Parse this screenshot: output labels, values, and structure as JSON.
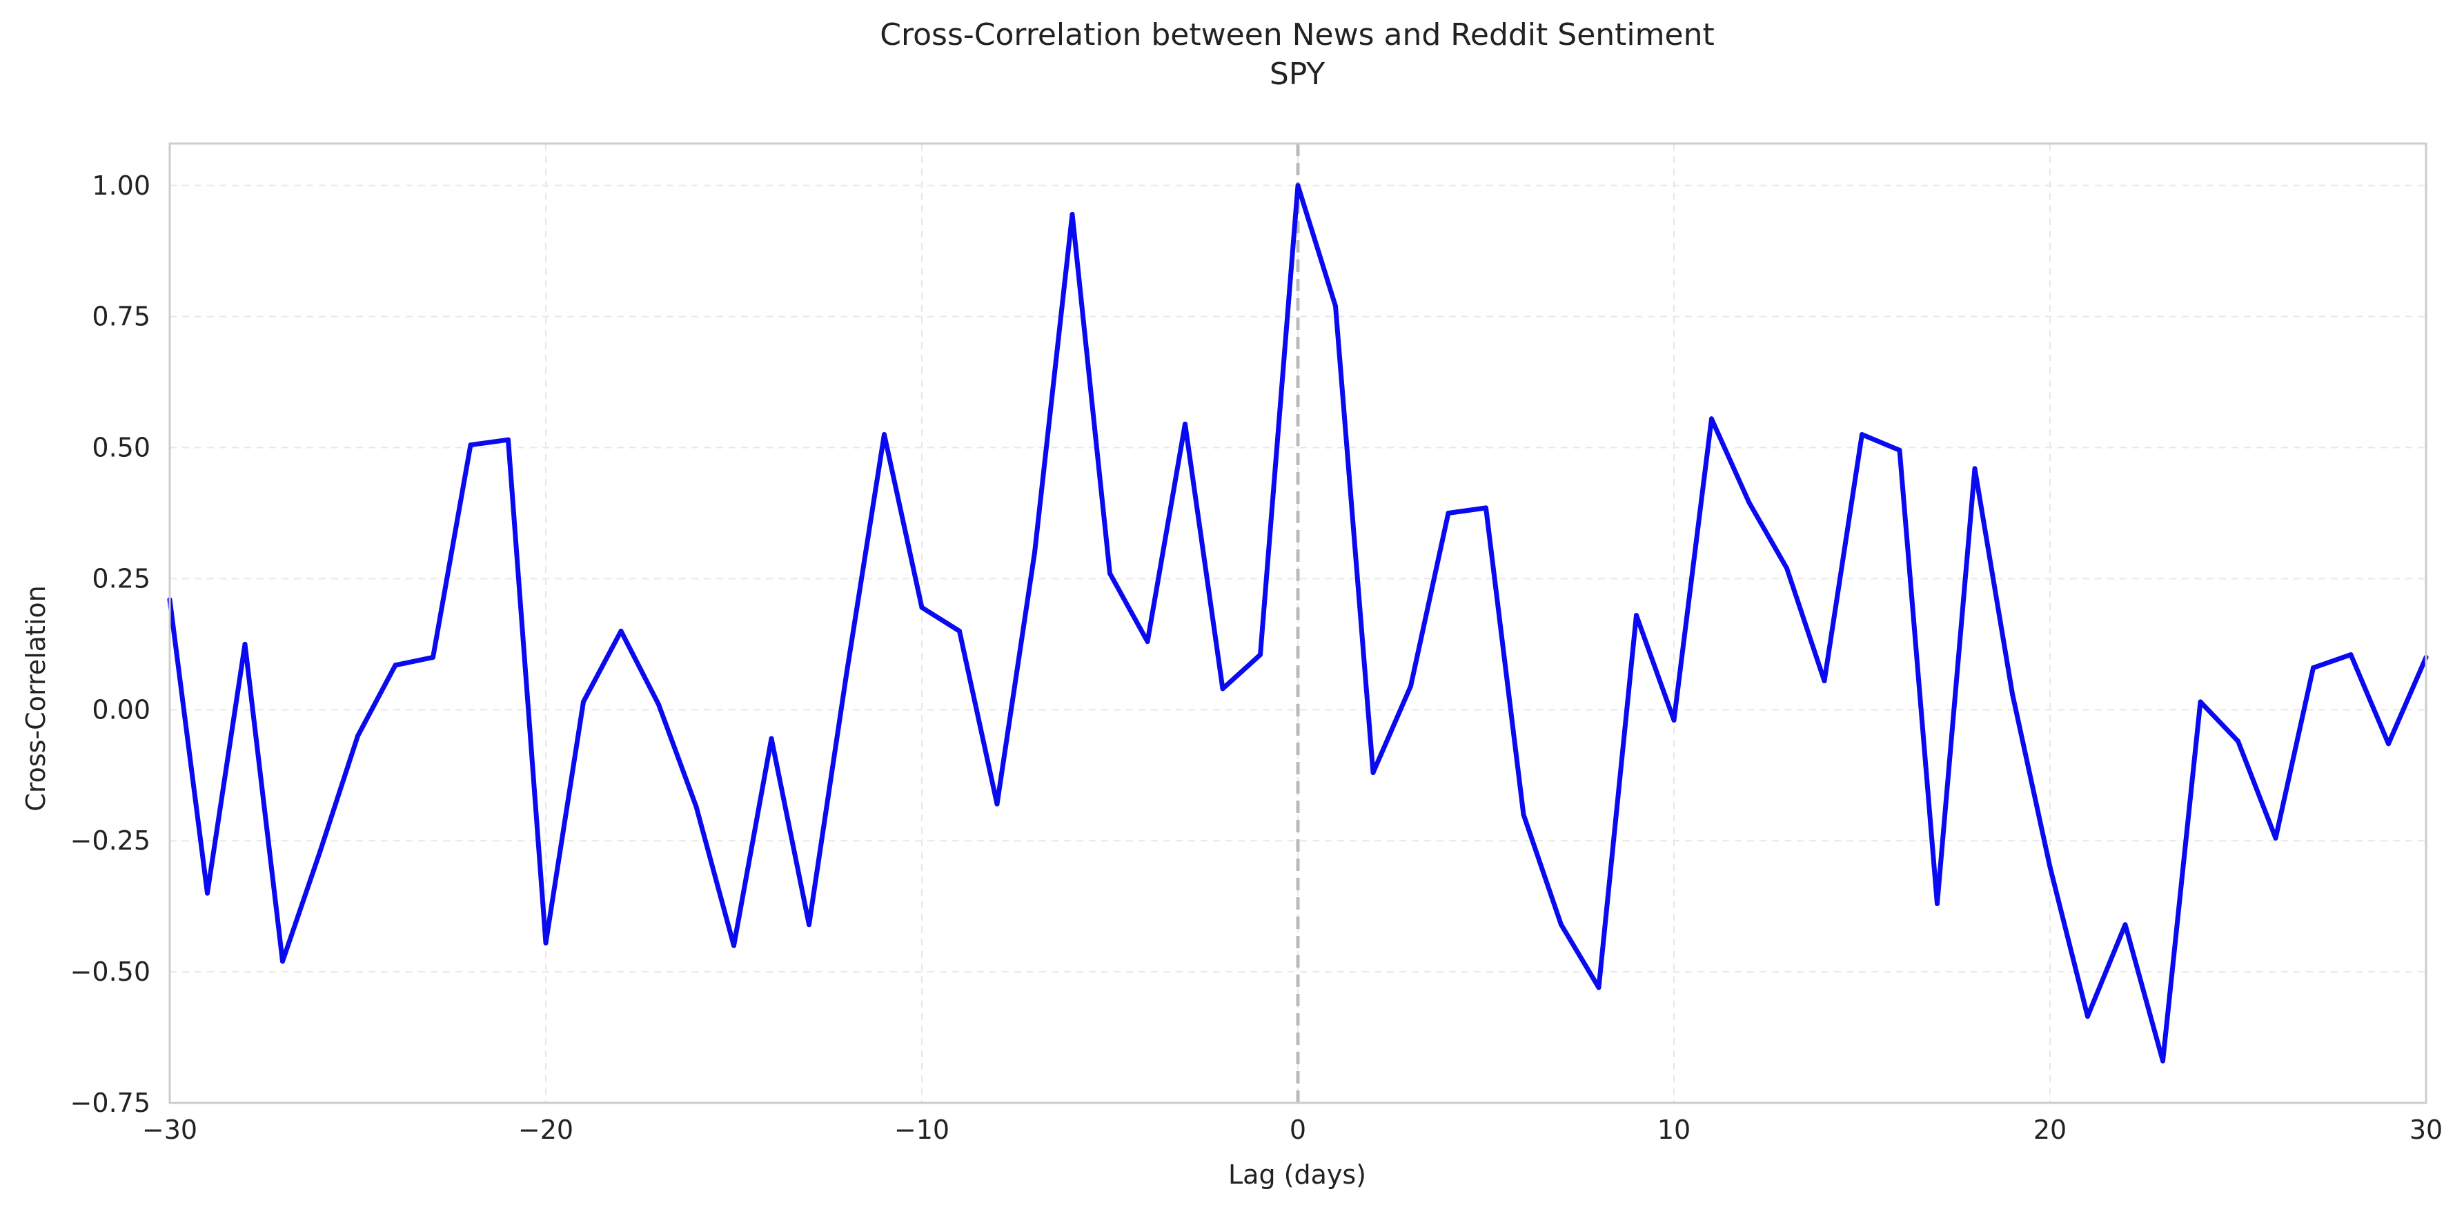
{
  "chart_data": {
    "type": "line",
    "title": "Cross-Correlation between News and Reddit Sentiment",
    "subtitle": "SPY",
    "xlabel": "Lag (days)",
    "ylabel": "Cross-Correlation",
    "xlim": [
      -30,
      30
    ],
    "ylim": [
      -0.75,
      1.08
    ],
    "xticks": [
      -30,
      -20,
      -10,
      0,
      10,
      20,
      30
    ],
    "xtick_labels": [
      "−30",
      "−20",
      "−10",
      "0",
      "10",
      "20",
      "30"
    ],
    "yticks": [
      1.0,
      0.75,
      0.5,
      0.25,
      0.0,
      -0.25,
      -0.5,
      -0.75
    ],
    "ytick_labels": [
      "1.00",
      "0.75",
      "0.50",
      "0.25",
      "0.00",
      "−0.25",
      "−0.50",
      "−0.75"
    ],
    "grid": true,
    "reference_line_x": 0,
    "colors": {
      "line": "#0a0af0",
      "reference": "#bbbbbb",
      "grid": "#e8e8e8",
      "frame": "#cccccc"
    },
    "x": [
      -30,
      -29,
      -28,
      -27,
      -26,
      -25,
      -24,
      -23,
      -22,
      -21,
      -20,
      -19,
      -18,
      -17,
      -16,
      -15,
      -14,
      -13,
      -12,
      -11,
      -10,
      -9,
      -8,
      -7,
      -6,
      -5,
      -4,
      -3,
      -2,
      -1,
      0,
      1,
      2,
      3,
      4,
      5,
      6,
      7,
      8,
      9,
      10,
      11,
      12,
      13,
      14,
      15,
      16,
      17,
      18,
      19,
      20,
      21,
      22,
      23,
      24,
      25,
      26,
      27,
      28,
      29,
      30
    ],
    "y": [
      0.21,
      -0.35,
      0.125,
      -0.48,
      -0.27,
      -0.05,
      0.085,
      0.1,
      0.505,
      0.515,
      -0.445,
      0.015,
      0.15,
      0.01,
      -0.185,
      -0.45,
      -0.055,
      -0.41,
      0.07,
      0.525,
      0.195,
      0.15,
      -0.18,
      0.3,
      0.945,
      0.26,
      0.13,
      0.545,
      0.04,
      0.105,
      1.0,
      0.77,
      -0.12,
      0.045,
      0.375,
      0.385,
      -0.2,
      -0.41,
      -0.53,
      0.18,
      -0.02,
      0.555,
      0.395,
      0.27,
      0.055,
      0.525,
      0.495,
      -0.37,
      0.46,
      0.03,
      -0.3,
      -0.585,
      -0.41,
      -0.67,
      0.015,
      -0.06,
      -0.245,
      0.08,
      0.105,
      -0.065,
      0.1
    ]
  }
}
